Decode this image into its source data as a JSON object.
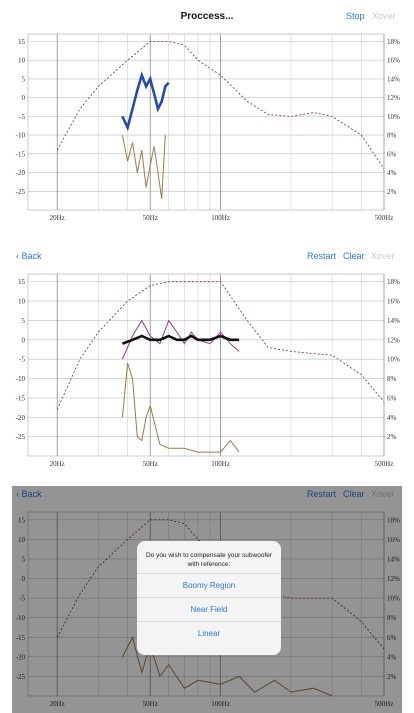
{
  "panel1": {
    "title": "Proccess...",
    "buttons": {
      "stop": "Stop",
      "xover": "Xover"
    }
  },
  "panel2": {
    "back": "Back",
    "buttons": {
      "restart": "Restart",
      "clear": "Clear",
      "xover": "Xover"
    }
  },
  "panel3": {
    "back": "Back",
    "buttons": {
      "restart": "Restart",
      "clear": "Clear",
      "xover": "Xover"
    }
  },
  "dialog": {
    "message": "Do you wish to compensate your subwoofer with reference:",
    "options": [
      "Boomy Region",
      "Near Field",
      "Linear"
    ]
  },
  "chart_axes": {
    "left_ticks": [
      "15",
      "10",
      "5",
      "0",
      "-5",
      "-10",
      "-15",
      "-20",
      "-25"
    ],
    "right_ticks": [
      "18%",
      "16%",
      "14%",
      "12%",
      "10%",
      "8%",
      "6%",
      "4%",
      "2%"
    ],
    "x_ticks": [
      "20Hz",
      "50Hz",
      "100Hz",
      "500Hz"
    ]
  },
  "chart_data": [
    {
      "type": "line",
      "ylim": [
        -30,
        17
      ],
      "x_scale": "log",
      "xlim": [
        15,
        500
      ],
      "series": [
        {
          "color": "#7a2b2b",
          "style": "dashed",
          "x": [
            20,
            25,
            30,
            40,
            50,
            60,
            70,
            80,
            100,
            130,
            160,
            200,
            250,
            300,
            400,
            500
          ],
          "y": [
            -14,
            -3,
            3,
            10,
            15,
            15,
            14,
            10,
            6,
            -1,
            -4.5,
            -5,
            -4,
            -5,
            -10,
            -19
          ]
        },
        {
          "color": "#2a4aa8",
          "style": "solid",
          "x": [
            38,
            40,
            42,
            44,
            46,
            48,
            50,
            52,
            54,
            56,
            58,
            60
          ],
          "y": [
            -5,
            -8,
            -3,
            2,
            6,
            3,
            5,
            1,
            -3,
            -1,
            3,
            4
          ]
        },
        {
          "color": "#9a7a50",
          "style": "solid",
          "x": [
            38,
            40,
            42,
            44,
            46,
            48,
            50,
            52,
            54,
            56,
            58
          ],
          "y": [
            -10,
            -17,
            -12,
            -20,
            -14,
            -24,
            -18,
            -13,
            -20,
            -27,
            -10
          ]
        }
      ]
    },
    {
      "type": "line",
      "ylim": [
        -30,
        17
      ],
      "x_scale": "log",
      "xlim": [
        15,
        500
      ],
      "series": [
        {
          "color": "#7a2b2b",
          "style": "dashed",
          "x": [
            20,
            25,
            30,
            40,
            50,
            60,
            80,
            100,
            130,
            160,
            200,
            300,
            400,
            500
          ],
          "y": [
            -18,
            -5,
            2,
            10,
            14,
            15,
            15,
            15,
            5,
            -2,
            -3,
            -4,
            -9,
            -16
          ]
        },
        {
          "color": "#8a3a8a",
          "style": "solid",
          "x": [
            38,
            42,
            46,
            50,
            55,
            60,
            65,
            70,
            75,
            80,
            90,
            100,
            110,
            120
          ],
          "y": [
            -5,
            1,
            5,
            1,
            -1,
            5,
            2,
            -1,
            2,
            0,
            -1,
            2,
            -1,
            -3
          ]
        },
        {
          "color": "#111111",
          "style": "solid",
          "x": [
            38,
            42,
            46,
            50,
            55,
            60,
            65,
            70,
            75,
            80,
            90,
            100,
            110,
            120
          ],
          "y": [
            -1,
            0,
            1,
            0,
            0,
            1,
            0,
            0,
            1,
            0,
            0,
            1,
            0,
            0
          ]
        },
        {
          "color": "#9a7a50",
          "style": "solid",
          "x": [
            38,
            40,
            42,
            44,
            46,
            48,
            50,
            55,
            60,
            70,
            80,
            100,
            110,
            120
          ],
          "y": [
            -20,
            -6,
            -10,
            -25,
            -26,
            -20,
            -17,
            -27,
            -28,
            -28,
            -29,
            -29,
            -26,
            -29
          ]
        }
      ]
    },
    {
      "type": "line",
      "ylim": [
        -30,
        17
      ],
      "x_scale": "log",
      "xlim": [
        15,
        500
      ],
      "series": [
        {
          "color": "#7a2b2b",
          "style": "dashed",
          "x": [
            20,
            25,
            30,
            40,
            50,
            60,
            70,
            80,
            100,
            130,
            160,
            200,
            300,
            400,
            500
          ],
          "y": [
            -15,
            -4,
            3,
            10,
            15,
            15,
            14,
            10,
            5,
            -1,
            -4,
            -5,
            -5,
            -11,
            -18
          ]
        },
        {
          "color": "#9a7a50",
          "style": "solid",
          "x": [
            38,
            42,
            46,
            50,
            55,
            60,
            70,
            80,
            100,
            120,
            140,
            170,
            200,
            250,
            300
          ],
          "y": [
            -20,
            -15,
            -24,
            -17,
            -25,
            -22,
            -28,
            -26,
            -27,
            -25,
            -29,
            -26,
            -29,
            -28,
            -30
          ]
        }
      ]
    }
  ]
}
